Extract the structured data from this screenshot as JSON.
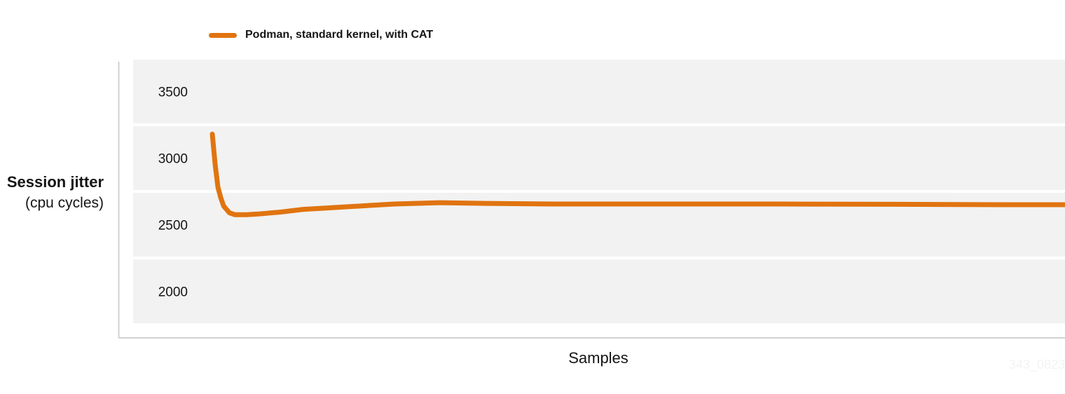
{
  "chart_data": {
    "type": "line",
    "title": "",
    "xlabel": "Samples",
    "ylabel": "Session jitter",
    "ylabel_unit": "(cpu cycles)",
    "ylim": [
      1750,
      3750
    ],
    "y_ticks": [
      3500,
      3000,
      2500,
      2000
    ],
    "y_tick_labels": [
      "3500",
      "3000",
      "2500",
      "2000"
    ],
    "grid": "alternating horizontal bands",
    "legend_position": "top-left",
    "series": [
      {
        "name": "Podman, standard kernel, with CAT",
        "color": "#e07410",
        "x": [
          0,
          1,
          2,
          3,
          4,
          6,
          8,
          12,
          16,
          24,
          32,
          40,
          56,
          64,
          80,
          96,
          120,
          160,
          200,
          240,
          280,
          300
        ],
        "y": [
          3180,
          2950,
          2780,
          2700,
          2640,
          2590,
          2575,
          2575,
          2580,
          2595,
          2615,
          2625,
          2645,
          2655,
          2665,
          2660,
          2655,
          2655,
          2655,
          2653,
          2650,
          2650
        ]
      }
    ]
  },
  "watermark": "343_0823"
}
